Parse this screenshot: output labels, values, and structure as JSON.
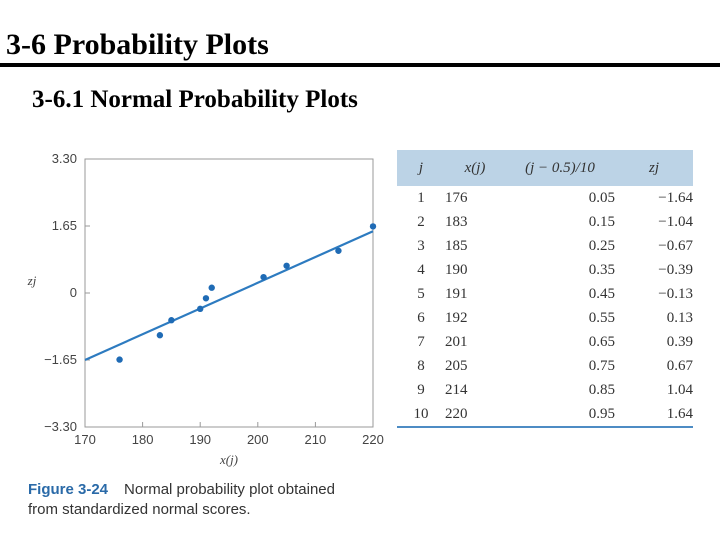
{
  "slide": {
    "title": "3-6   Probability Plots",
    "subtitle": "3-6.1 Normal Probability Plots"
  },
  "chart_data": {
    "type": "scatter",
    "title": "",
    "xlabel": "x(j)",
    "ylabel": "zj",
    "xlim": [
      170,
      220
    ],
    "ylim": [
      -3.3,
      3.3
    ],
    "x_ticks": [
      "170",
      "180",
      "190",
      "200",
      "210",
      "220"
    ],
    "y_ticks": [
      "3.30",
      "1.65",
      "0",
      "−1.65",
      "−3.30"
    ],
    "x": [
      176,
      183,
      185,
      190,
      191,
      192,
      201,
      205,
      214,
      220
    ],
    "y": [
      -1.64,
      -1.04,
      -0.67,
      -0.39,
      -0.13,
      0.13,
      0.39,
      0.67,
      1.04,
      1.64
    ],
    "fit_line": {
      "x": [
        170,
        220
      ],
      "y": [
        -1.65,
        1.52
      ]
    },
    "colors": {
      "points": "#1f6bb5",
      "line": "#2d7bc0",
      "frame": "#999999"
    }
  },
  "table": {
    "headers": [
      "j",
      "x(j)",
      "(j − 0.5)/10",
      "zj"
    ],
    "rows": [
      [
        "1",
        "176",
        "0.05",
        "−1.64"
      ],
      [
        "2",
        "183",
        "0.15",
        "−1.04"
      ],
      [
        "3",
        "185",
        "0.25",
        "−0.67"
      ],
      [
        "4",
        "190",
        "0.35",
        "−0.39"
      ],
      [
        "5",
        "191",
        "0.45",
        "−0.13"
      ],
      [
        "6",
        "192",
        "0.55",
        "0.13"
      ],
      [
        "7",
        "201",
        "0.65",
        "0.39"
      ],
      [
        "8",
        "205",
        "0.75",
        "0.67"
      ],
      [
        "9",
        "214",
        "0.85",
        "1.04"
      ],
      [
        "10",
        "220",
        "0.95",
        "1.64"
      ]
    ],
    "header_color": "#bcd3e6",
    "rule_color": "#4d8cc4"
  },
  "caption": {
    "label": "Figure 3-24",
    "text_line1": "Normal probability plot obtained",
    "text_line2": "from standardized normal scores."
  }
}
